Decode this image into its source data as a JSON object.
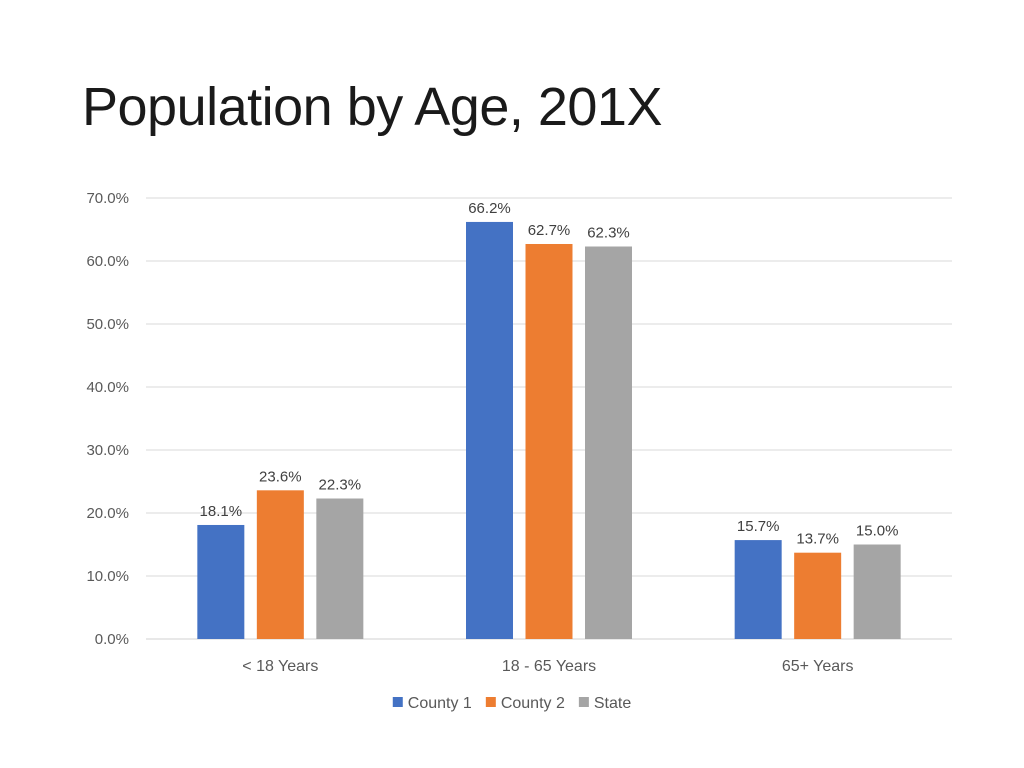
{
  "title": "Population by Age, 201X",
  "chart_data": {
    "type": "bar",
    "categories": [
      "< 18 Years",
      "18 - 65 Years",
      "65+ Years"
    ],
    "series": [
      {
        "name": "County 1",
        "values": [
          18.1,
          66.2,
          15.7
        ],
        "color": "#4472C4"
      },
      {
        "name": "County 2",
        "values": [
          23.6,
          62.7,
          13.7
        ],
        "color": "#ED7D31"
      },
      {
        "name": "State",
        "values": [
          22.3,
          62.3,
          15.0
        ],
        "color": "#A5A5A5"
      }
    ],
    "data_labels": [
      [
        "18.1%",
        "66.2%",
        "15.7%"
      ],
      [
        "23.6%",
        "62.7%",
        "13.7%"
      ],
      [
        "22.3%",
        "62.3%",
        "15.0%"
      ]
    ],
    "yticks": [
      "0.0%",
      "10.0%",
      "20.0%",
      "30.0%",
      "40.0%",
      "50.0%",
      "60.0%",
      "70.0%"
    ],
    "ytick_values": [
      0,
      10,
      20,
      30,
      40,
      50,
      60,
      70
    ],
    "ylim": [
      0,
      70
    ],
    "grid": true,
    "legend_position": "bottom",
    "title": "Population by Age, 201X"
  }
}
